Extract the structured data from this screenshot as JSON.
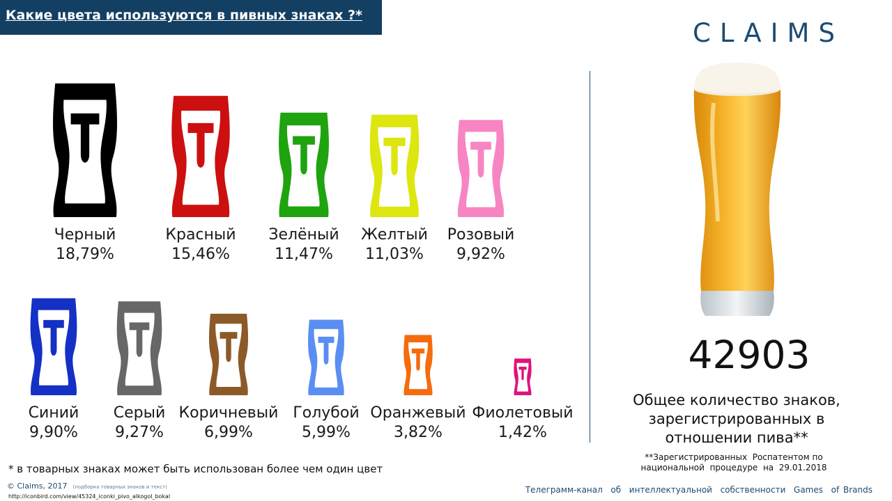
{
  "title": "Какие цвета используются в пивных знаках ?*",
  "logo": "CLAIMS",
  "chart_data": {
    "type": "pictogram",
    "title": "Какие цвета используются в пивных знаках ?*",
    "unit": "%",
    "categories": [
      "Черный",
      "Красный",
      "Зелёный",
      "Желтый",
      "Розовый",
      "Синий",
      "Серый",
      "Коричневый",
      "Голубой",
      "Оранжевый",
      "Фиолетовый"
    ],
    "values": [
      18.79,
      15.46,
      11.47,
      11.03,
      9.92,
      9.9,
      9.27,
      6.99,
      5.99,
      3.82,
      1.42
    ],
    "value_labels": [
      "18,79%",
      "15,46%",
      "11,47%",
      "11,03%",
      "9,92%",
      "9,90%",
      "9,27%",
      "6,99%",
      "5,99%",
      "3,82%",
      "1,42%"
    ],
    "colors": [
      "#000000",
      "#cc1010",
      "#1fa30f",
      "#dde60e",
      "#f785c3",
      "#1530c4",
      "#676767",
      "#8c5a28",
      "#5a8ef2",
      "#f56c0e",
      "#e0137c"
    ]
  },
  "total": {
    "value": "42903",
    "description_lines": [
      "Общее количество знаков,",
      "зарегистрированных в",
      "отношении пива"
    ],
    "description_suffix": "**",
    "note_lines": [
      "**Зарегистрированных  Роспатентом по",
      "национальной  процедуре  на  29.01.2018"
    ]
  },
  "footnote": "* в товарных знаках может быть использован более чем один цвет",
  "copyright": "© Claims, 2017",
  "copyright_small": "(подборка товарных знаков и текст)",
  "source_url": "http://iconbird.com/view/45324_iconki_pivo_alkogol_bokal",
  "channel": "Телеграмм-канал  об  интеллектуальной  собственности  Games  of Brands"
}
